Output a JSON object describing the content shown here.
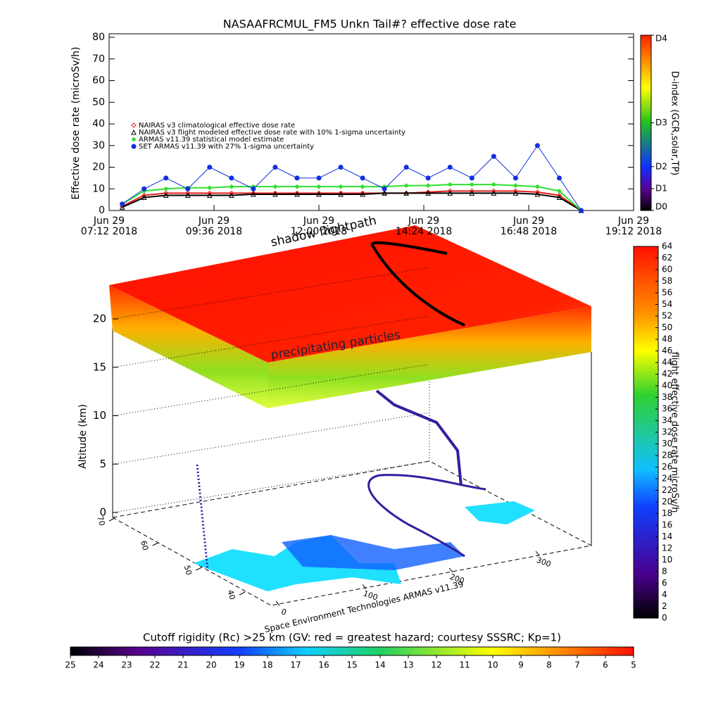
{
  "chart_data": [
    {
      "type": "line",
      "title": "NASAAFRCMUL_FM5 Unkn Tail#? effective dose rate",
      "y_label": "Effective dose rate (microSv/h)",
      "xlim": [
        7.2,
        19.2
      ],
      "xticks": [
        {
          "value": 7.2,
          "label": [
            "Jun 29",
            "07:12 2018"
          ]
        },
        {
          "value": 9.6,
          "label": [
            "Jun 29",
            "09:36 2018"
          ]
        },
        {
          "value": 12.0,
          "label": [
            "Jun 29",
            "12:00 2018"
          ]
        },
        {
          "value": 14.4,
          "label": [
            "Jun 29",
            "14:24 2018"
          ]
        },
        {
          "value": 16.8,
          "label": [
            "Jun 29",
            "16:48 2018"
          ]
        },
        {
          "value": 19.2,
          "label": [
            "Jun 29",
            "19:12 2018"
          ]
        }
      ],
      "ylim": [
        0,
        80
      ],
      "yticks": [
        0,
        10,
        20,
        30,
        40,
        50,
        60,
        70,
        80
      ],
      "x": [
        7.5,
        8,
        8.5,
        9,
        9.5,
        10,
        10.5,
        11,
        11.5,
        12,
        12.5,
        13,
        13.5,
        14,
        14.5,
        15,
        15.5,
        16,
        16.5,
        17,
        17.5,
        18
      ],
      "series": [
        {
          "name": "NAIRAS v3 climatological effective dose rate",
          "color": "#e02020",
          "marker": "diamond",
          "values": [
            2,
            7,
            8,
            8,
            8,
            8,
            8,
            8,
            8,
            8,
            8,
            8,
            8,
            8,
            8.5,
            9,
            9,
            9,
            9,
            8.5,
            7,
            0
          ]
        },
        {
          "name": "NAIRAS v3 flight modeled effective dose rate with 10% 1-sigma uncertainty",
          "color": "#000000",
          "marker": "triangle",
          "values": [
            1.5,
            6,
            7,
            7,
            7,
            7,
            7.5,
            7.5,
            7.5,
            7.5,
            7.5,
            7.5,
            8,
            8,
            8,
            8,
            8,
            8,
            8,
            7.5,
            6,
            0
          ]
        },
        {
          "name": "ARMAS v11.39 statistical model estimate",
          "color": "#30e030",
          "marker": "star",
          "values": [
            3,
            9,
            10,
            10.5,
            10.5,
            11,
            11,
            11,
            11,
            11,
            11,
            11,
            11,
            11.5,
            11.5,
            12,
            12,
            12,
            11.5,
            11,
            9,
            0
          ]
        },
        {
          "name": "SET ARMAS v11.39 with 27% 1-sigma uncertainty",
          "color": "#1030e0",
          "marker": "circle",
          "values": [
            3,
            10,
            15,
            10,
            20,
            15,
            10,
            20,
            15,
            15,
            20,
            15,
            10,
            20,
            15,
            20,
            15,
            25,
            15,
            30,
            15,
            0
          ]
        }
      ],
      "colorbar": {
        "label": "D-index (GCR,solar,TP)",
        "lim": [
          0,
          80
        ],
        "ticks": [
          {
            "value": 0,
            "label": "D0"
          },
          {
            "value": 10,
            "label": "D1"
          },
          {
            "value": 20,
            "label": "D2"
          },
          {
            "value": 40,
            "label": "D3"
          },
          {
            "value": 80,
            "label": "D4"
          }
        ]
      }
    },
    {
      "type": "surface3d",
      "annotations": [
        "shadow flightpath",
        "precipitating particles"
      ],
      "z_label": "Altitude (km)",
      "zlim": [
        0,
        20
      ],
      "zticks": [
        0,
        5,
        10,
        15,
        20
      ],
      "lat_lim": [
        70,
        40
      ],
      "lat_ticks": [
        70,
        60,
        50,
        40
      ],
      "lon_lim": [
        0,
        360
      ],
      "lon_ticks": [
        0,
        100,
        200,
        300
      ],
      "credit": "Space Environment Technologies ARMAS v11.39",
      "colorbar": {
        "label": "flight effective dose rate microSv/h",
        "lim": [
          0,
          64
        ],
        "ticks": [
          0,
          2,
          4,
          6,
          8,
          10,
          12,
          14,
          16,
          18,
          20,
          22,
          24,
          26,
          28,
          30,
          32,
          34,
          36,
          38,
          40,
          42,
          44,
          46,
          48,
          50,
          52,
          54,
          56,
          58,
          60,
          62,
          64
        ]
      },
      "rc_colorbar": {
        "label": "Cutoff rigidity (Rc) >25 km (GV: red = greatest hazard; courtesy SSSRC; Kp=1)",
        "lim": [
          25,
          5
        ],
        "ticks": [
          25,
          24,
          23,
          22,
          21,
          20,
          19,
          18,
          17,
          16,
          15,
          14,
          13,
          12,
          11,
          10,
          9,
          8,
          7,
          6,
          5
        ]
      }
    }
  ]
}
